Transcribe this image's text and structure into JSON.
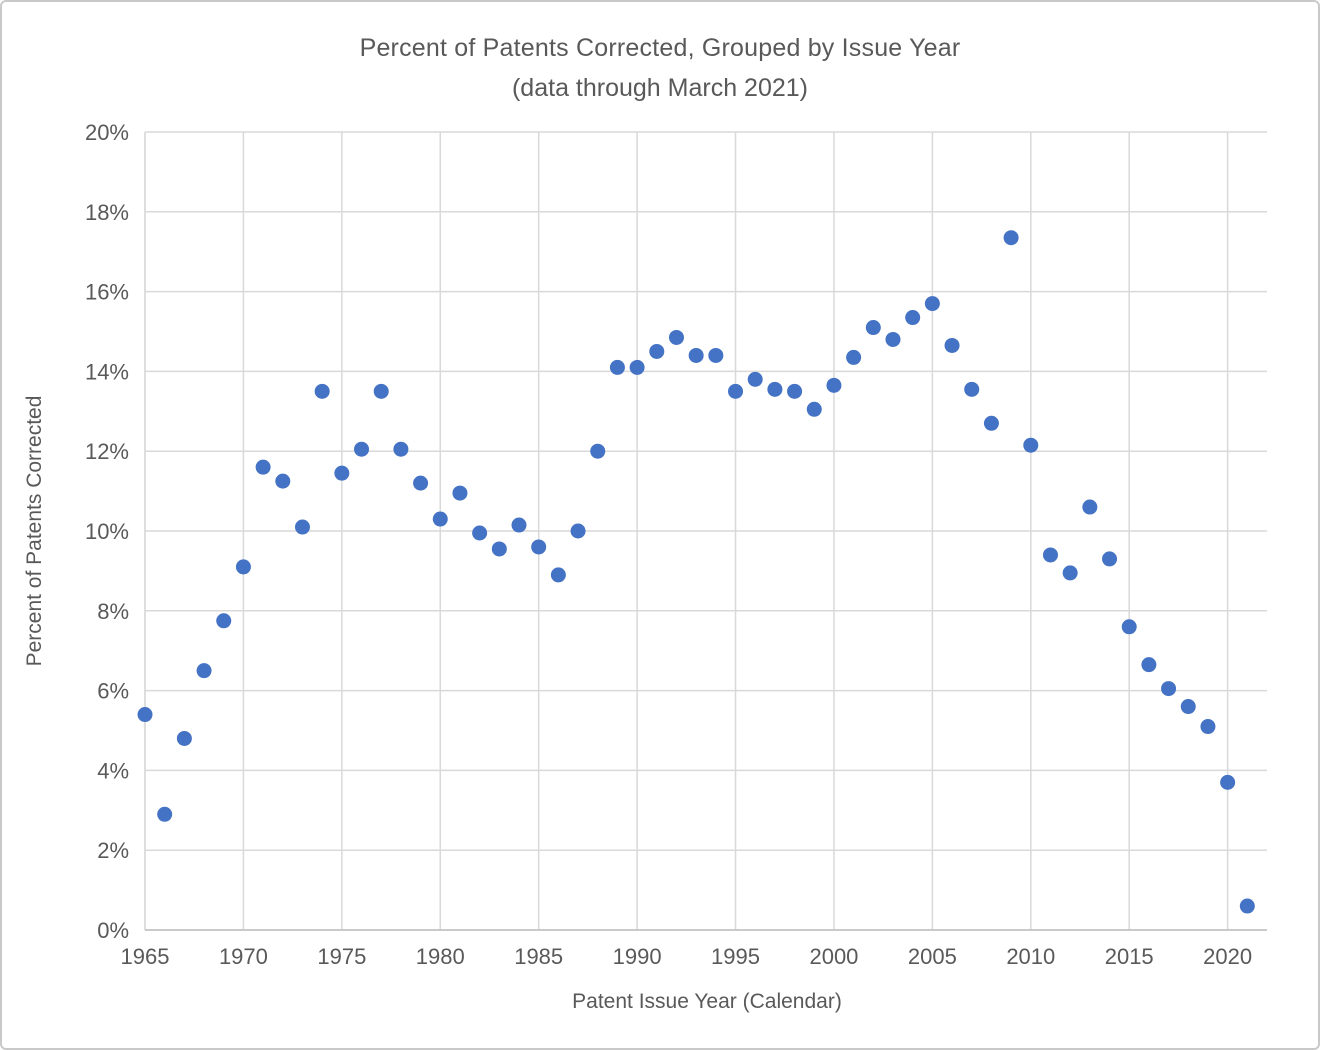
{
  "chart_data": {
    "type": "scatter",
    "title": "Percent of Patents Corrected, Grouped by Issue Year",
    "subtitle": "(data through March 2021)",
    "xlabel": "Patent Issue Year (Calendar)",
    "ylabel": "Percent of Patents Corrected",
    "xlim": [
      1965,
      2022
    ],
    "ylim": [
      0,
      20
    ],
    "x_ticks": [
      1965,
      1970,
      1975,
      1980,
      1985,
      1990,
      1995,
      2000,
      2005,
      2010,
      2015,
      2020
    ],
    "y_tick_step": 2,
    "y_tick_suffix": "%",
    "grid": true,
    "legend": "none",
    "colors": {
      "marker": "#4472C4",
      "gridline": "#D9D9D9",
      "axis_line": "#BFBFBF",
      "text": "#595959"
    },
    "x": [
      1965,
      1966,
      1967,
      1968,
      1969,
      1970,
      1971,
      1972,
      1973,
      1974,
      1975,
      1976,
      1977,
      1978,
      1979,
      1980,
      1981,
      1982,
      1983,
      1984,
      1985,
      1986,
      1987,
      1988,
      1989,
      1990,
      1991,
      1992,
      1993,
      1994,
      1995,
      1996,
      1997,
      1998,
      1999,
      2000,
      2001,
      2002,
      2003,
      2004,
      2005,
      2006,
      2007,
      2008,
      2009,
      2010,
      2011,
      2012,
      2013,
      2014,
      2015,
      2016,
      2017,
      2018,
      2019,
      2020,
      2021
    ],
    "y": [
      5.4,
      2.9,
      4.8,
      6.5,
      7.75,
      9.1,
      11.6,
      11.25,
      10.1,
      13.5,
      11.45,
      12.05,
      13.5,
      12.05,
      11.2,
      10.3,
      10.95,
      9.95,
      9.55,
      10.15,
      9.6,
      8.9,
      10.0,
      12.0,
      14.1,
      14.1,
      14.5,
      14.85,
      14.4,
      14.4,
      13.5,
      13.8,
      13.55,
      13.5,
      13.05,
      13.65,
      14.35,
      15.1,
      14.8,
      15.35,
      15.7,
      14.65,
      13.55,
      12.7,
      17.35,
      12.15,
      9.4,
      8.95,
      10.6,
      9.3,
      7.6,
      6.65,
      6.05,
      5.6,
      5.1,
      3.7,
      0.6
    ]
  }
}
